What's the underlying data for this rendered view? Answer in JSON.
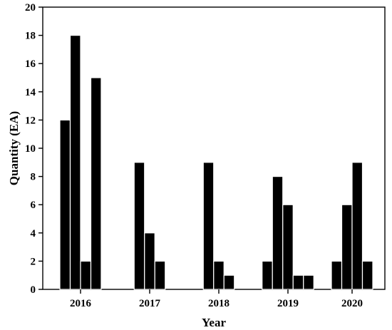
{
  "chart_data": {
    "type": "bar",
    "title": "",
    "xlabel": "Year",
    "ylabel": "Quantity (EA)",
    "ylim": [
      0,
      20
    ],
    "yticks": [
      0,
      2,
      4,
      6,
      8,
      10,
      12,
      14,
      16,
      18,
      20
    ],
    "grid": false,
    "legend": "none",
    "bar_color": "#000000",
    "categories": [
      "2016",
      "2017",
      "2018",
      "2019",
      "2020"
    ],
    "groups": [
      {
        "year": "2016",
        "values": [
          12,
          18,
          2,
          15
        ]
      },
      {
        "year": "2017",
        "values": [
          9,
          4,
          2
        ]
      },
      {
        "year": "2018",
        "values": [
          9,
          2,
          1
        ]
      },
      {
        "year": "2019",
        "values": [
          2,
          8,
          6,
          1,
          1
        ]
      },
      {
        "year": "2020",
        "values": [
          2,
          6,
          9,
          2
        ]
      }
    ]
  }
}
